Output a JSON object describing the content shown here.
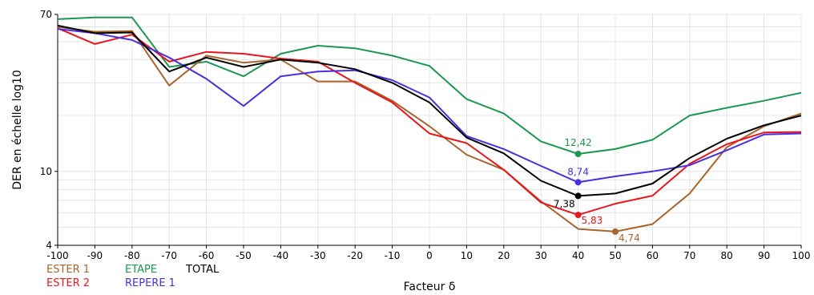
{
  "chart_data": {
    "type": "line",
    "title": "",
    "xlabel": "Facteur δ",
    "ylabel": "DER en échelle log10",
    "xlim": [
      -100,
      100
    ],
    "ylim": [
      4,
      70
    ],
    "yscale": "log",
    "grid": true,
    "legend_position": "bottom-left",
    "x_ticks": [
      "-100",
      "-90",
      "-80",
      "-70",
      "-60",
      "-50",
      "-40",
      "-30",
      "-20",
      "-10",
      "0",
      "10",
      "20",
      "30",
      "40",
      "50",
      "60",
      "70",
      "80",
      "90",
      "100"
    ],
    "y_ticks": [
      {
        "value": 4,
        "label": "4"
      },
      {
        "value": 10,
        "label": "10"
      },
      {
        "value": 70,
        "label": "70"
      }
    ],
    "x": [
      -100,
      -90,
      -80,
      -70,
      -60,
      -50,
      -40,
      -30,
      -20,
      -10,
      0,
      10,
      20,
      30,
      40,
      50,
      60,
      70,
      80,
      90,
      100
    ],
    "series": [
      {
        "name": "ETAPE",
        "color": "#1a9850",
        "values": [
          66,
          67.5,
          67.5,
          36.5,
          39,
          32.5,
          43,
          47.5,
          46,
          42,
          37,
          24.5,
          20.5,
          14.5,
          12.42,
          13.2,
          14.8,
          20,
          22,
          24,
          26.5
        ]
      },
      {
        "name": "ESTER 1",
        "color": "#a8642a",
        "values": [
          60,
          56.5,
          57,
          29,
          42,
          38.5,
          40,
          30.5,
          30.5,
          24,
          17.5,
          12.3,
          10.2,
          6.9,
          4.9,
          4.74,
          5.2,
          7.6,
          13.5,
          17.5,
          20.5
        ]
      },
      {
        "name": "ESTER 2",
        "color": "#e8161c",
        "values": [
          59,
          48.5,
          54.5,
          39,
          44,
          43,
          40.5,
          39,
          30,
          23.5,
          16,
          14.2,
          10.2,
          6.8,
          5.83,
          6.7,
          7.4,
          11,
          14,
          16.2,
          16.3
        ]
      },
      {
        "name": "REPERE 1",
        "color": "#4b2ee0",
        "values": [
          58.5,
          55.5,
          51,
          41,
          31.5,
          22.5,
          32.5,
          34.5,
          35,
          31,
          25,
          15.5,
          13.2,
          10.7,
          8.74,
          9.4,
          10,
          10.8,
          13,
          15.8,
          16
        ]
      },
      {
        "name": "TOTAL",
        "color": "#000000",
        "values": [
          61,
          55.5,
          56,
          34.5,
          41,
          36.5,
          40,
          38.5,
          35.5,
          30,
          23.5,
          15.2,
          12.5,
          8.9,
          7.38,
          7.6,
          8.6,
          11.8,
          15,
          17.7,
          20
        ]
      }
    ],
    "annotations": [
      {
        "series": "ETAPE",
        "x": 40,
        "y": 12.42,
        "label": "12,42"
      },
      {
        "series": "REPERE 1",
        "x": 40,
        "y": 8.74,
        "label": "8,74"
      },
      {
        "series": "TOTAL",
        "x": 40,
        "y": 7.38,
        "label": "7,38"
      },
      {
        "series": "ESTER 2",
        "x": 40,
        "y": 5.83,
        "label": "5,83"
      },
      {
        "series": "ESTER 1",
        "x": 50,
        "y": 4.74,
        "label": "4,74"
      }
    ]
  }
}
